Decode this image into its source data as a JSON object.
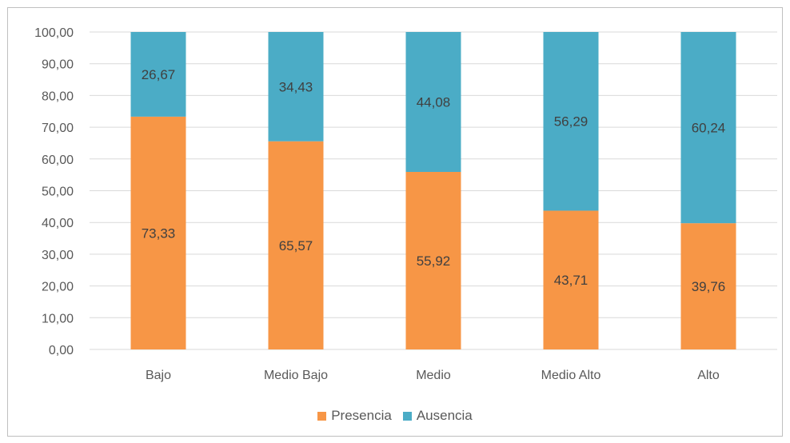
{
  "chart_data": {
    "type": "bar",
    "stacked": true,
    "categories": [
      "Bajo",
      "Medio Bajo",
      "Medio",
      "Medio Alto",
      "Alto"
    ],
    "series": [
      {
        "name": "Presencia",
        "color": "#f79646",
        "values": [
          73.33,
          65.57,
          55.92,
          43.71,
          39.76
        ]
      },
      {
        "name": "Ausencia",
        "color": "#4bacc6",
        "values": [
          26.67,
          34.43,
          44.08,
          56.29,
          60.24
        ]
      }
    ],
    "y_ticks": [
      "0,00",
      "10,00",
      "20,00",
      "30,00",
      "40,00",
      "50,00",
      "60,00",
      "70,00",
      "80,00",
      "90,00",
      "100,00"
    ],
    "ylim": [
      0,
      100
    ],
    "grid": true,
    "legend_position": "bottom",
    "data_labels": [
      [
        "73,33",
        "65,57",
        "55,92",
        "43,71",
        "39,76"
      ],
      [
        "26,67",
        "34,43",
        "44,08",
        "56,29",
        "60,24"
      ]
    ]
  }
}
